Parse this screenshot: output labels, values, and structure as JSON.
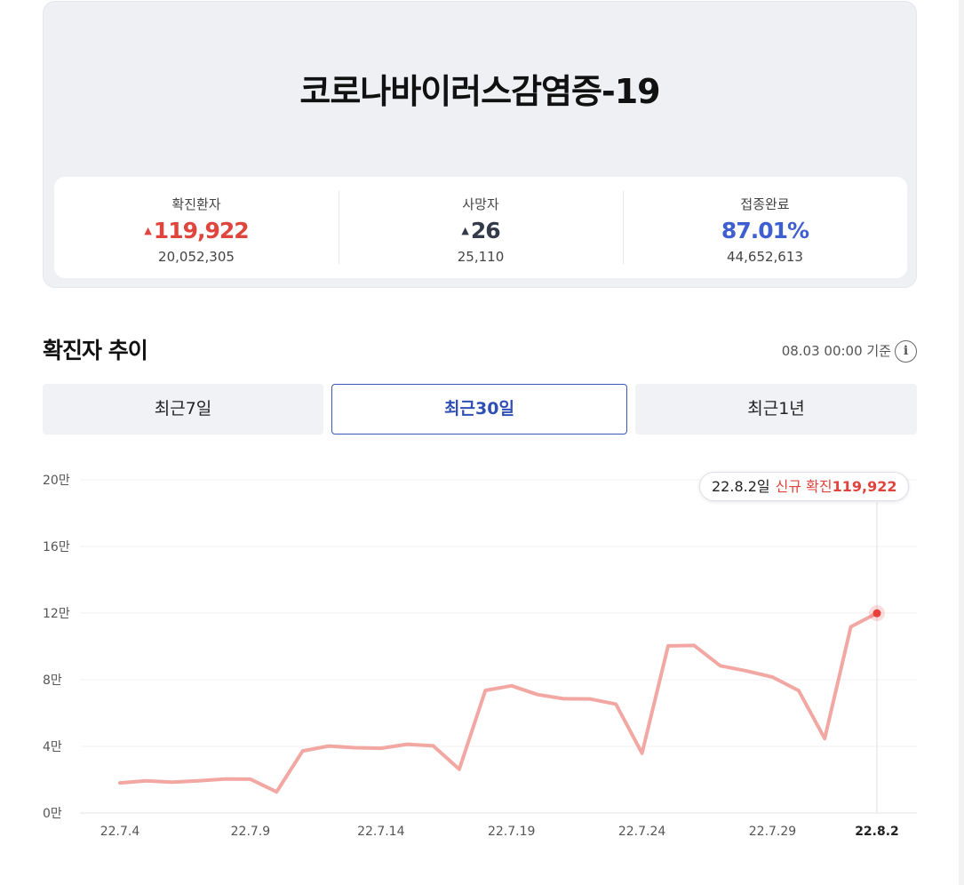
{
  "summary": {
    "title": "코로나바이러스감염증-19",
    "stats": [
      {
        "label": "확진환자",
        "arrow": "▲",
        "main": "119,922",
        "sub": "20,052,305"
      },
      {
        "label": "사망자",
        "arrow": "▲",
        "main": "26",
        "sub": "25,110"
      },
      {
        "label": "접종완료",
        "arrow": "",
        "main": "87.01%",
        "sub": "44,652,613"
      }
    ]
  },
  "trend": {
    "title": "확진자 추이",
    "updated": "08.03 00:00 기준",
    "info_icon": "info-icon",
    "tabs": [
      {
        "label": "최근7일",
        "active": false
      },
      {
        "label": "최근30일",
        "active": true
      },
      {
        "label": "최근1년",
        "active": false
      }
    ]
  },
  "tooltip": {
    "date": "22.8.2일",
    "label": "신규 확진",
    "value": "119,922"
  },
  "colors": {
    "line": "#f2a7a2",
    "point": "#e8413b",
    "red": "#e0453d",
    "blue": "#3f5ed0",
    "tab_active": "#3a58b8"
  },
  "chart_data": {
    "type": "line",
    "title": "",
    "xlabel": "",
    "ylabel": "",
    "ylim": [
      0,
      200000
    ],
    "y_ticks": [
      0,
      40000,
      80000,
      120000,
      160000,
      200000
    ],
    "y_tick_labels": [
      "0만",
      "4만",
      "8만",
      "12만",
      "16만",
      "20만"
    ],
    "x": [
      "22.7.4",
      "22.7.5",
      "22.7.6",
      "22.7.7",
      "22.7.8",
      "22.7.9",
      "22.7.10",
      "22.7.11",
      "22.7.12",
      "22.7.13",
      "22.7.14",
      "22.7.15",
      "22.7.16",
      "22.7.17",
      "22.7.18",
      "22.7.19",
      "22.7.20",
      "22.7.21",
      "22.7.22",
      "22.7.23",
      "22.7.24",
      "22.7.25",
      "22.7.26",
      "22.7.27",
      "22.7.28",
      "22.7.29",
      "22.7.30",
      "22.7.31",
      "22.8.1",
      "22.8.2"
    ],
    "x_tick_labels": [
      "22.7.4",
      "22.7.9",
      "22.7.14",
      "22.7.19",
      "22.7.24",
      "22.7.29",
      "22.8.2"
    ],
    "series": [
      {
        "values": [
          18100,
          19300,
          18500,
          19300,
          20400,
          20300,
          12700,
          37300,
          40200,
          39200,
          38900,
          41300,
          40300,
          26300,
          73600,
          76400,
          71100,
          68600,
          68500,
          65400,
          35900,
          100300,
          100600,
          88400,
          85300,
          81600,
          73500,
          44700,
          111800,
          119922
        ]
      }
    ],
    "highlight": {
      "x": "22.8.2",
      "y": 119922
    },
    "grid": true,
    "legend": "none"
  }
}
